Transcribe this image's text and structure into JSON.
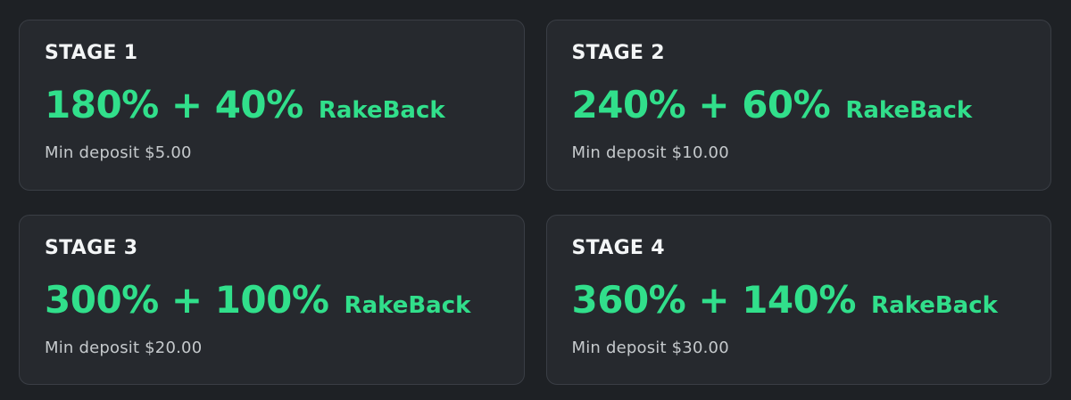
{
  "theme": {
    "page_background": "#1e2125",
    "card_background": "#26292e",
    "card_border": "#3a3e45",
    "accent_green": "#31df8b",
    "stage_text_color": "#f3f5f6",
    "muted_text_color": "#c5c9cc"
  },
  "cards": [
    {
      "stage_label": "STAGE 1",
      "bonus": "180% + 40%",
      "bonus_suffix": "RakeBack",
      "min_deposit": "Min deposit $5.00"
    },
    {
      "stage_label": "STAGE 2",
      "bonus": "240% + 60%",
      "bonus_suffix": "RakeBack",
      "min_deposit": "Min deposit $10.00"
    },
    {
      "stage_label": "STAGE 3",
      "bonus": "300% + 100%",
      "bonus_suffix": "RakeBack",
      "min_deposit": "Min deposit $20.00"
    },
    {
      "stage_label": "STAGE 4",
      "bonus": "360% + 140%",
      "bonus_suffix": "RakeBack",
      "min_deposit": "Min deposit $30.00"
    }
  ]
}
